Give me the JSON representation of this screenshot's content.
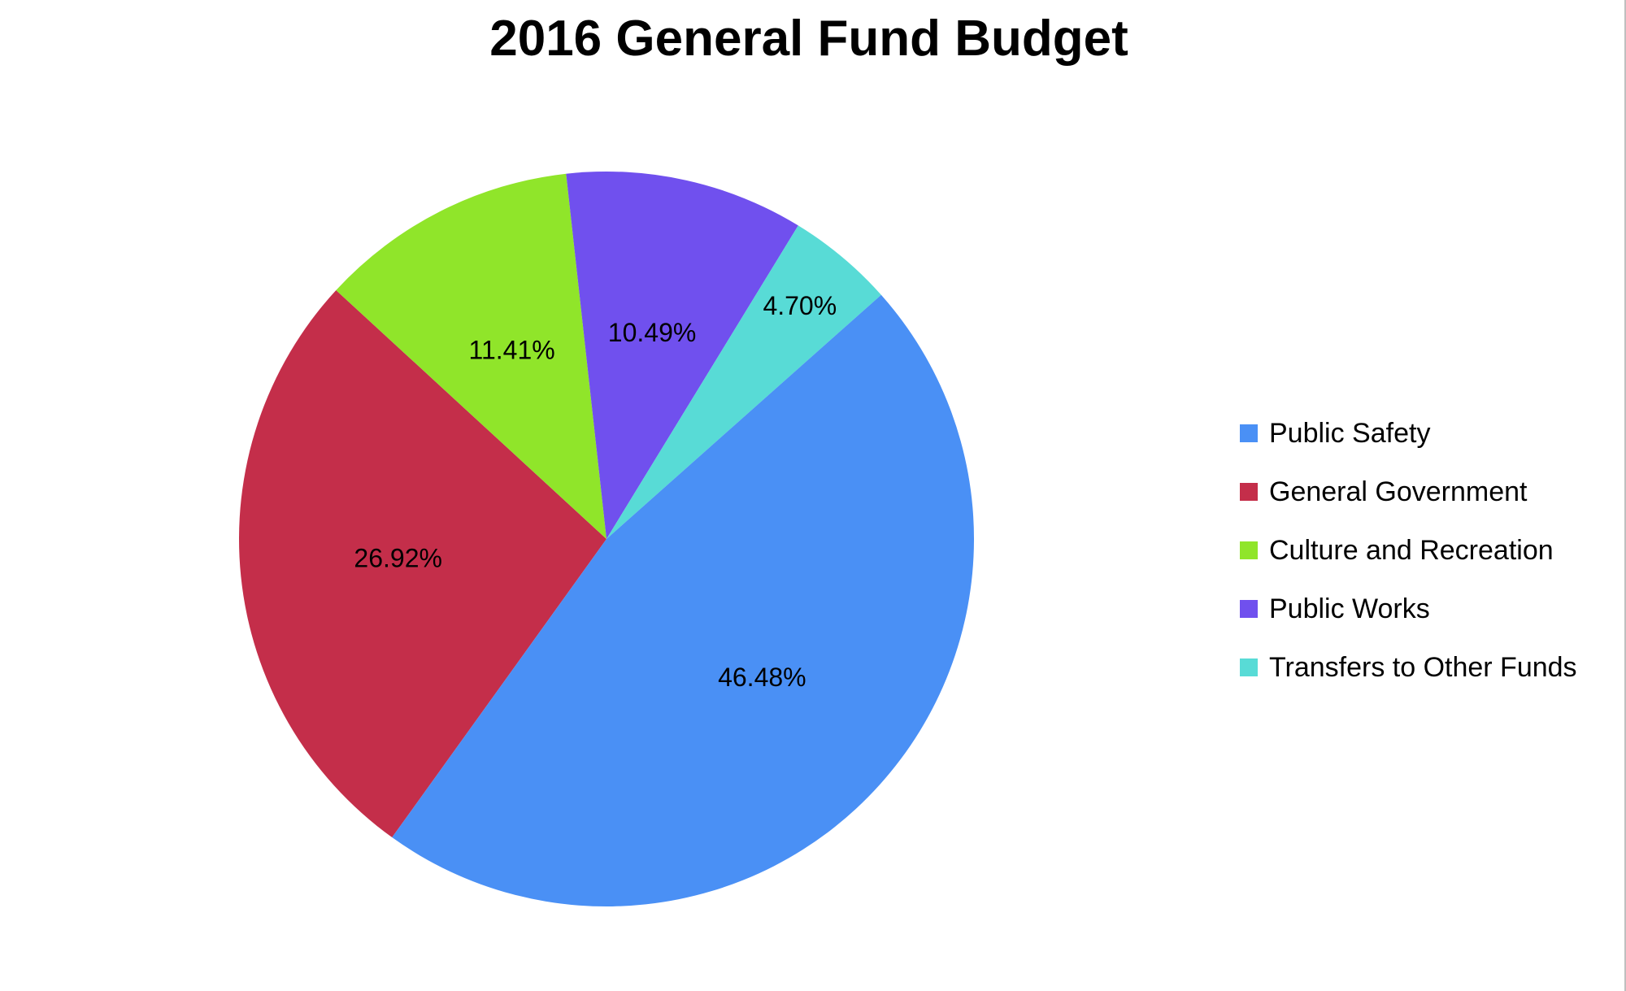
{
  "chart_data": {
    "type": "pie",
    "title": "2016 General Fund Budget",
    "legend_position": "right",
    "slices": [
      {
        "label": "Public Safety",
        "value": 46.48,
        "value_label": "46.48%",
        "color": "#4A90F5"
      },
      {
        "label": "General Government",
        "value": 26.92,
        "value_label": "26.92%",
        "color": "#C42E4A"
      },
      {
        "label": "Culture and Recreation",
        "value": 11.41,
        "value_label": "11.41%",
        "color": "#90E52A"
      },
      {
        "label": "Public Works",
        "value": 10.49,
        "value_label": "10.49%",
        "color": "#7050EE"
      },
      {
        "label": "Transfers to Other Funds",
        "value": 4.7,
        "value_label": "4.70%",
        "color": "#58DBD6"
      }
    ]
  }
}
